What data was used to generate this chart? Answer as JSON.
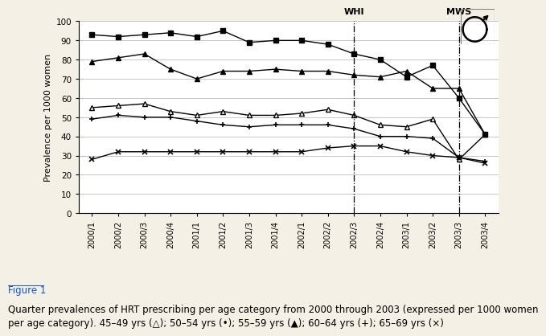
{
  "x_labels": [
    "2000/1",
    "2000/2",
    "2000/3",
    "2000/4",
    "2001/1",
    "2001/2",
    "2001/3",
    "2001/4",
    "2002/1",
    "2002/2",
    "2002/3",
    "2002/4",
    "2003/1",
    "2003/2",
    "2003/3",
    "2003/4"
  ],
  "series": {
    "45-49": [
      55,
      56,
      57,
      53,
      51,
      53,
      51,
      51,
      52,
      54,
      51,
      46,
      45,
      49,
      28,
      41
    ],
    "50-54": [
      93,
      92,
      93,
      94,
      92,
      95,
      89,
      90,
      90,
      88,
      83,
      80,
      71,
      77,
      60,
      41
    ],
    "55-59": [
      79,
      81,
      83,
      75,
      70,
      74,
      74,
      75,
      74,
      74,
      72,
      71,
      74,
      65,
      65,
      41
    ],
    "60-64": [
      49,
      51,
      50,
      50,
      48,
      46,
      45,
      46,
      46,
      46,
      44,
      40,
      40,
      39,
      29,
      27
    ],
    "65-69": [
      28,
      32,
      32,
      32,
      32,
      32,
      32,
      32,
      32,
      34,
      35,
      35,
      32,
      30,
      29,
      26
    ]
  },
  "whi_index": 10,
  "mws_index": 14,
  "background_color": "#f5f0e6",
  "plot_bg_color": "#ffffff",
  "ylabel": "Prevalence per 1000 women",
  "ylim": [
    0,
    100
  ],
  "yticks": [
    0,
    10,
    20,
    30,
    40,
    50,
    60,
    70,
    80,
    90,
    100
  ],
  "whi_label": "WHI",
  "mws_label": "MWS",
  "line_color": "#000000",
  "grid_color": "#bbbbbb",
  "figure1_label": "Figure 1",
  "caption_line1": "Quarter prevalences of HRT prescribing per age category from 2000 through 2003 (expressed per 1000 women",
  "caption_line2": "per age category). 45–49 yrs (△); 50–54 yrs (•); 55–59 yrs (▲); 60–64 yrs (+); 65–69 yrs (×)"
}
